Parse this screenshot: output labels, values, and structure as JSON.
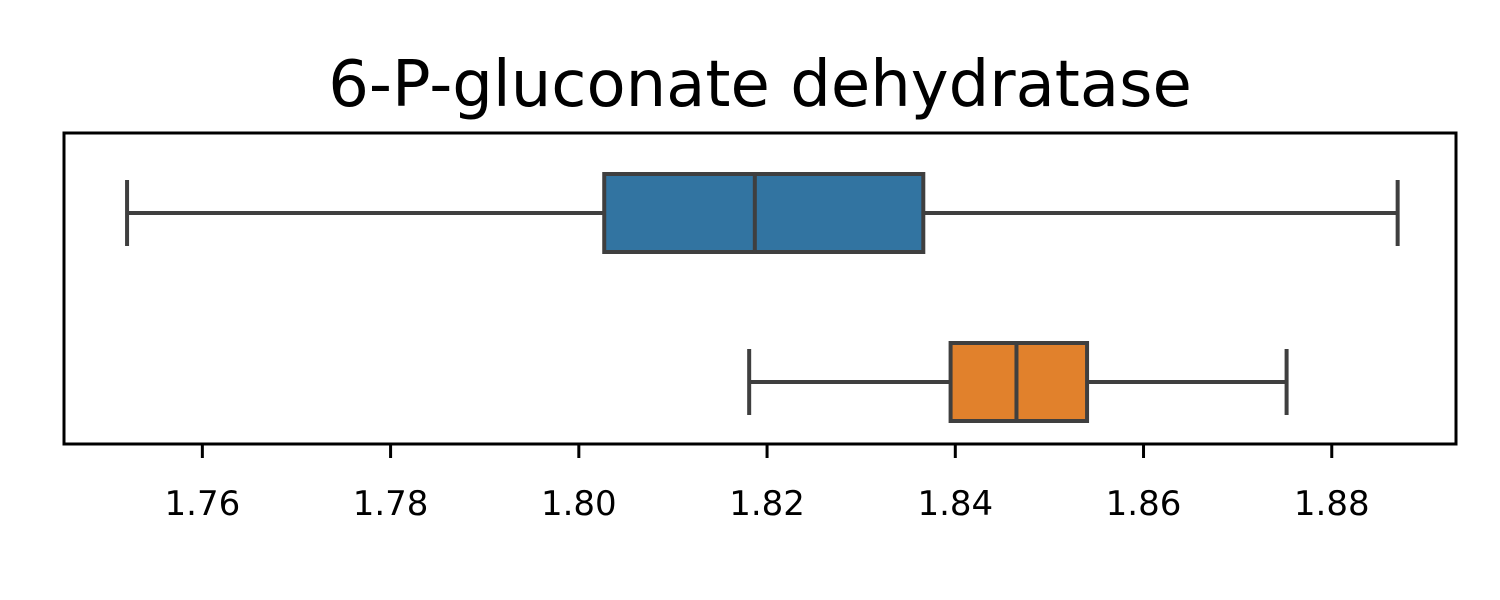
{
  "chart_data": {
    "type": "box",
    "orientation": "horizontal",
    "title": "6-P-gluconate dehydratase",
    "xlabel": "",
    "ylabel": "",
    "xlim": [
      1.7453,
      1.8932
    ],
    "xticks": [
      1.76,
      1.78,
      1.8,
      1.82,
      1.84,
      1.86,
      1.88
    ],
    "xtick_labels": [
      "1.76",
      "1.78",
      "1.80",
      "1.82",
      "1.84",
      "1.86",
      "1.88"
    ],
    "grid": false,
    "legend": "none",
    "boxes": [
      {
        "min": 1.752,
        "q1": 1.8027,
        "median": 1.8187,
        "q3": 1.8366,
        "max": 1.887,
        "color": "#3274a1"
      },
      {
        "min": 1.8181,
        "q1": 1.8395,
        "median": 1.8465,
        "q3": 1.854,
        "max": 1.8752,
        "color": "#e1812c"
      }
    ],
    "line_color": "#3f3f3f",
    "frame_color": "#000000"
  }
}
